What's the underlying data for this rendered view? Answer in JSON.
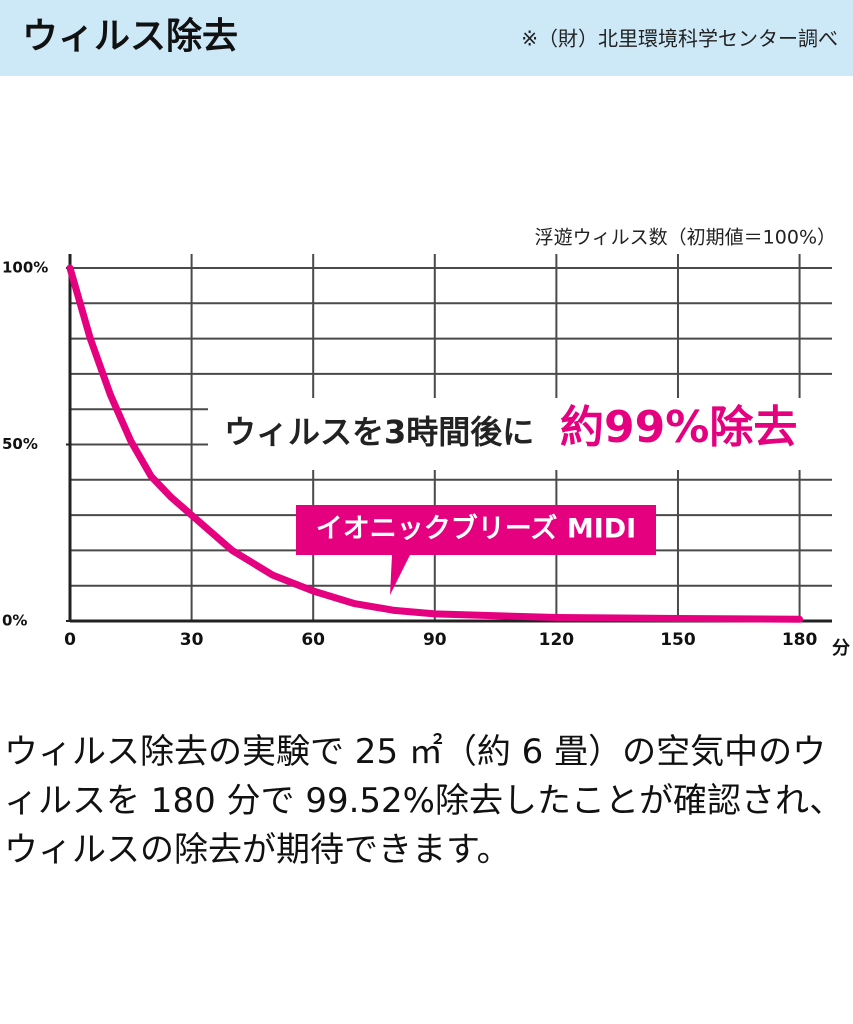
{
  "header": {
    "title": "ウィルス除去",
    "source": "※（財）北里環境科学センター調べ"
  },
  "chart_data": {
    "type": "line",
    "subtitle": "浮遊ウィルス数（初期値＝100%）",
    "annotations": [
      "ウィルスを3時間後に",
      "約99%除去"
    ],
    "x_unit": "分",
    "series": [
      {
        "name": "イオニックブリーズ MIDI",
        "color": "#e4007f",
        "x": [
          0,
          5,
          10,
          15,
          20,
          25,
          30,
          40,
          50,
          60,
          70,
          80,
          90,
          120,
          150,
          180
        ],
        "values": [
          100,
          80,
          64,
          51,
          41,
          35,
          30,
          20,
          13,
          8.5,
          5,
          3,
          2,
          1,
          0.7,
          0.48
        ]
      }
    ],
    "xlim": [
      0,
      188
    ],
    "xticks": [
      0,
      30,
      60,
      90,
      120,
      150,
      180
    ],
    "ylim": [
      0,
      100
    ],
    "yticks": [
      {
        "value": 0,
        "label": "0%"
      },
      {
        "value": 50,
        "label": "50%"
      },
      {
        "value": 100,
        "label": "100%"
      }
    ],
    "y_gridlines": [
      0,
      10,
      20,
      30,
      40,
      50,
      60,
      70,
      80,
      90,
      100
    ],
    "grid": true
  },
  "description": "ウィルス除去の実験で 25 ㎡（約 6 畳）の空気中のウィルスを 180 分で 99.52%除去したことが確認され、ウィルスの除去が期待できます。"
}
